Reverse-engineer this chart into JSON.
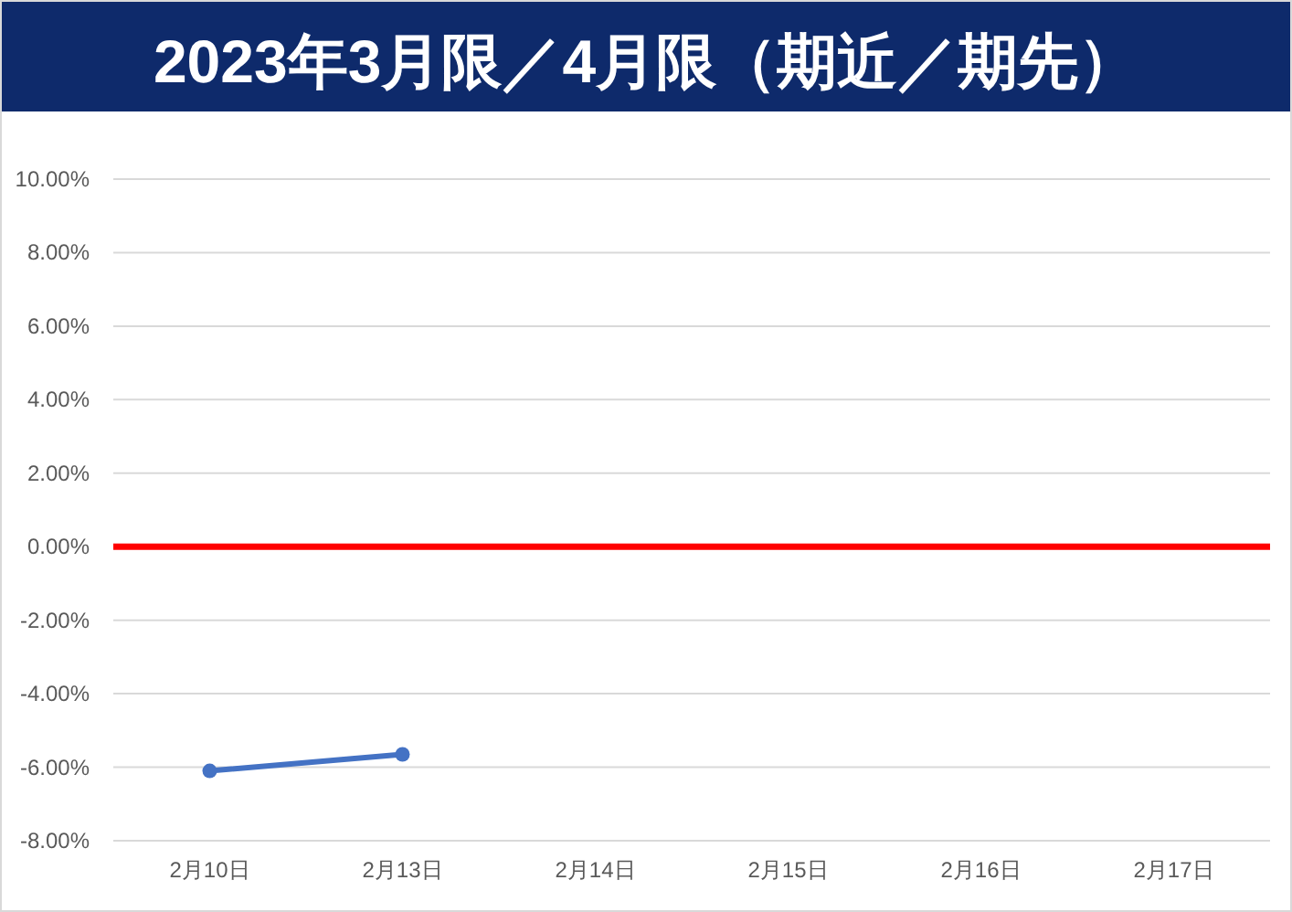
{
  "chart_data": {
    "type": "line",
    "title": "2023年3月限／4月限（期近／期先）",
    "categories": [
      "2月10日",
      "2月13日",
      "2月14日",
      "2月15日",
      "2月16日",
      "2月17日"
    ],
    "series": [
      {
        "color": "#4472c4",
        "values": [
          -6.1,
          -5.65,
          null,
          null,
          null,
          null
        ]
      }
    ],
    "ylim": [
      -8,
      10
    ],
    "yticks": [
      {
        "value": -8,
        "label": "-8.00%"
      },
      {
        "value": -6,
        "label": "-6.00%"
      },
      {
        "value": -4,
        "label": "-4.00%"
      },
      {
        "value": -2,
        "label": "-2.00%"
      },
      {
        "value": 0,
        "label": "0.00%"
      },
      {
        "value": 2,
        "label": "2.00%"
      },
      {
        "value": 4,
        "label": "4.00%"
      },
      {
        "value": 6,
        "label": "6.00%"
      },
      {
        "value": 8,
        "label": "8.00%"
      },
      {
        "value": 10,
        "label": "10.00%"
      }
    ],
    "ref_lines": [
      {
        "axis": "y",
        "value": 0,
        "color": "#ff0000"
      }
    ],
    "grid": "y",
    "marker": "circle",
    "line_style": "solid"
  }
}
